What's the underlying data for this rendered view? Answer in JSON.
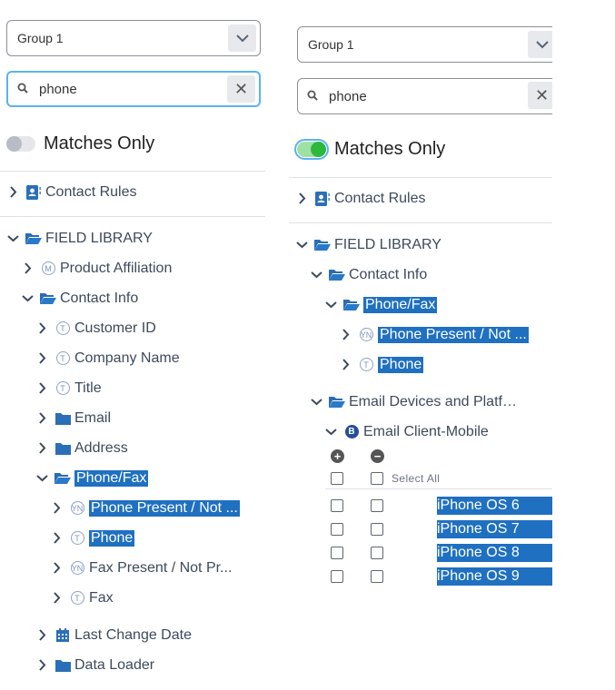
{
  "left": {
    "group_select": {
      "value": "Group 1"
    },
    "search": {
      "value": "phone"
    },
    "matches_only": {
      "label": "Matches Only",
      "on": false
    },
    "contact_rules": {
      "label": "Contact Rules",
      "icon": "contact-card-icon",
      "expanded": false
    },
    "tree": [
      {
        "label": "FIELD LIBRARY",
        "icon": "folder-open-icon",
        "expanded": true,
        "children": [
          {
            "label": "Product Affiliation",
            "icon": "m-circle-icon",
            "badge": "M",
            "expanded": false
          },
          {
            "label": "Contact Info",
            "icon": "folder-open-icon",
            "expanded": true,
            "children": [
              {
                "label": "Customer ID",
                "icon": "t-circle-icon",
                "badge": "T"
              },
              {
                "label": "Company Name",
                "icon": "t-circle-icon",
                "badge": "T"
              },
              {
                "label": "Title",
                "icon": "t-circle-icon",
                "badge": "T"
              },
              {
                "label": "Email",
                "icon": "folder-icon"
              },
              {
                "label": "Address",
                "icon": "folder-icon"
              },
              {
                "label": "Phone/Fax",
                "icon": "folder-open-icon",
                "expanded": true,
                "highlight": true,
                "children": [
                  {
                    "label": "Phone Present / Not ...",
                    "icon": "yn-circle-icon",
                    "badge": "YN",
                    "highlight": true
                  },
                  {
                    "label": "Phone",
                    "icon": "t-circle-icon",
                    "badge": "T",
                    "highlight": true
                  },
                  {
                    "label": "Fax Present / Not Pr...",
                    "icon": "yn-circle-icon",
                    "badge": "YN"
                  },
                  {
                    "label": "Fax",
                    "icon": "t-circle-icon",
                    "badge": "T"
                  }
                ]
              },
              {
                "label": "Last Change Date",
                "icon": "calendar-icon"
              },
              {
                "label": "Data Loader",
                "icon": "folder-icon"
              }
            ]
          }
        ]
      }
    ]
  },
  "right": {
    "group_select": {
      "value": "Group 1"
    },
    "search": {
      "value": "phone"
    },
    "matches_only": {
      "label": "Matches Only",
      "on": true
    },
    "contact_rules": {
      "label": "Contact Rules",
      "icon": "contact-card-icon",
      "expanded": false
    },
    "tree": [
      {
        "label": "FIELD LIBRARY",
        "icon": "folder-open-icon",
        "expanded": true,
        "children": [
          {
            "label": "Contact Info",
            "icon": "folder-open-icon",
            "expanded": true,
            "children": [
              {
                "label": "Phone/Fax",
                "icon": "folder-open-icon",
                "expanded": true,
                "highlight": true,
                "children": [
                  {
                    "label": "Phone Present / Not ...",
                    "icon": "yn-circle-icon",
                    "badge": "YN",
                    "highlight": true
                  },
                  {
                    "label": "Phone",
                    "icon": "t-circle-icon",
                    "badge": "T",
                    "highlight": true
                  }
                ]
              }
            ]
          },
          {
            "label": "Email Devices and Platfo...",
            "icon": "folder-open-icon",
            "expanded": true,
            "children": [
              {
                "label": "Email Client-Mobile",
                "icon": "b-circle-icon",
                "badge": "B",
                "expanded": true,
                "values": true
              }
            ]
          }
        ]
      }
    ],
    "value_picker": {
      "select_all": "Select All",
      "values": [
        "iPhone OS 6",
        "iPhone OS 7",
        "iPhone OS 8",
        "iPhone OS 9"
      ]
    }
  },
  "colors": {
    "highlight": "#1f70c1",
    "toggle_on": "#2db83d",
    "focus": "#5bb3ef"
  }
}
